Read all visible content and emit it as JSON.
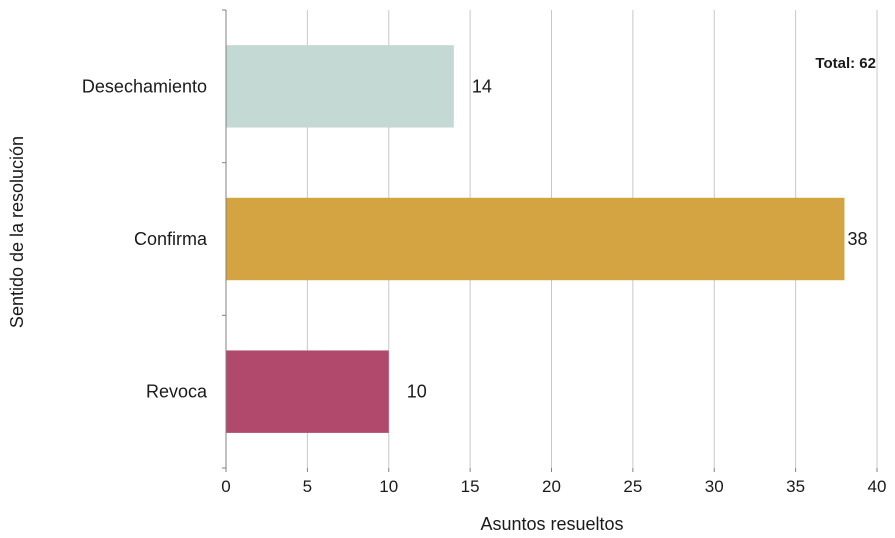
{
  "chart_data": {
    "type": "bar",
    "orientation": "horizontal",
    "categories": [
      "Desechamiento",
      "Confirma",
      "Revoca"
    ],
    "values": [
      14,
      38,
      10
    ],
    "colors": [
      "#c5d9d4",
      "#d4a443",
      "#b0496c"
    ],
    "xlabel": "Asuntos resueltos",
    "ylabel": "Sentido de la resolución",
    "xlim": [
      0,
      40
    ],
    "xticks": [
      "0",
      "5",
      "10",
      "15",
      "20",
      "25",
      "30",
      "35",
      "40"
    ],
    "grid": "vertical",
    "annotation": "Total: 62"
  }
}
